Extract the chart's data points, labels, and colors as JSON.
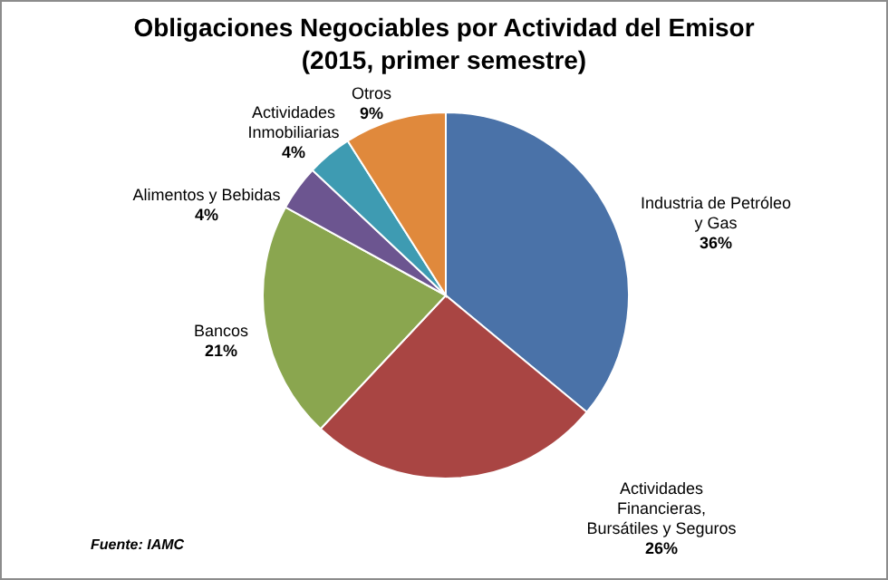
{
  "chart_data": {
    "type": "pie",
    "title": "Obligaciones Negociables por Actividad del Emisor",
    "subtitle": "(2015, primer semestre)",
    "categories": [
      "Industria de Petróleo y Gas",
      "Actividades Financieras, Bursátiles y Seguros",
      "Bancos",
      "Alimentos y Bebidas",
      "Actividades Inmobiliarias",
      "Otros"
    ],
    "values": [
      36,
      26,
      21,
      4,
      4,
      9
    ],
    "value_labels": [
      "36%",
      "26%",
      "21%",
      "4%",
      "4%",
      "9%"
    ],
    "colors": [
      "#4a72a8",
      "#a94543",
      "#8aa64f",
      "#6c5590",
      "#3e9bb2",
      "#e0893c"
    ],
    "annotations": [
      "Fuente: IAMC"
    ]
  }
}
